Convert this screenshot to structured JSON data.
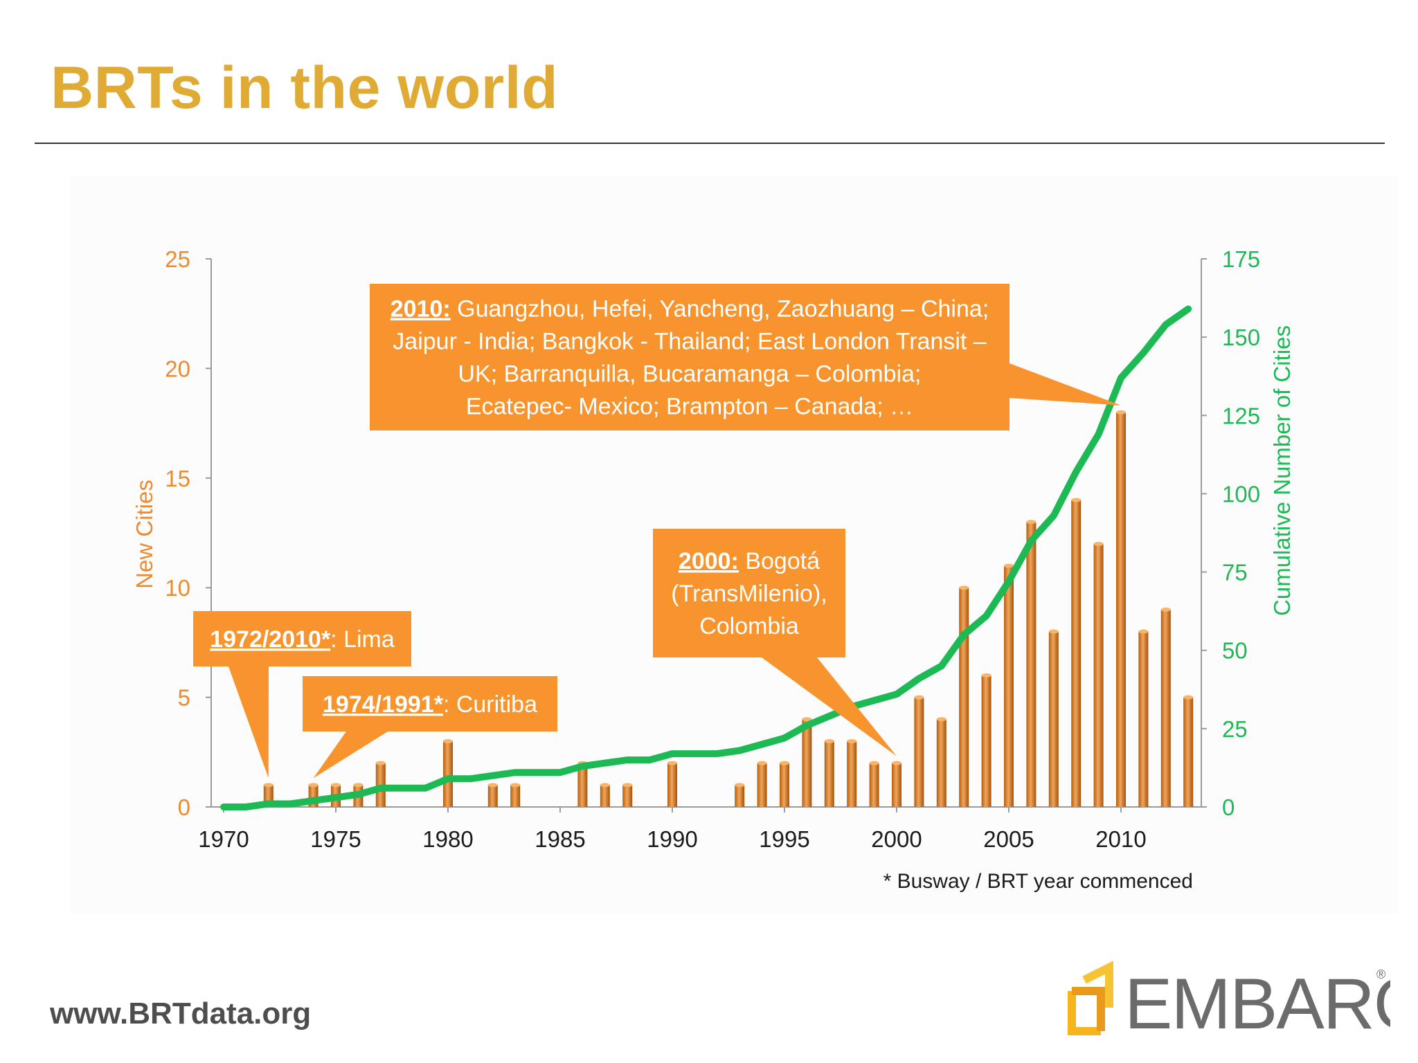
{
  "slide": {
    "title": "BRTs in the world",
    "url": "www.BRTdata.org",
    "logo_text": "EMBARQ",
    "logo_mark": "®"
  },
  "colors": {
    "title": "#DFAB34",
    "bar": "#D9801F",
    "line": "#1DB954",
    "left_axis": "#EE8A2E",
    "right_axis": "#1DB954",
    "callout": "#F7942E"
  },
  "chart_data": {
    "type": "bar",
    "title": "",
    "xlabel": "",
    "ylabel": "New Cities",
    "y2label": "Cumulative Number of Cities",
    "ylim": [
      0,
      25
    ],
    "y2lim": [
      0,
      175
    ],
    "x_ticks": [
      1970,
      1975,
      1980,
      1985,
      1990,
      1995,
      2000,
      2005,
      2010
    ],
    "y_ticks": [
      0,
      5,
      10,
      15,
      20,
      25
    ],
    "y2_ticks": [
      0,
      25,
      50,
      75,
      100,
      125,
      150,
      175
    ],
    "grid": false,
    "legend": "none",
    "footnote": "* Busway / BRT year commenced",
    "series": [
      {
        "name": "New Cities",
        "type": "bar",
        "axis": "left",
        "x": [
          1972,
          1974,
          1975,
          1976,
          1977,
          1980,
          1982,
          1983,
          1986,
          1987,
          1988,
          1990,
          1993,
          1994,
          1995,
          1996,
          1997,
          1998,
          1999,
          2000,
          2001,
          2002,
          2003,
          2004,
          2005,
          2006,
          2007,
          2008,
          2009,
          2010,
          2011,
          2012,
          2013
        ],
        "values": [
          1,
          1,
          1,
          1,
          2,
          3,
          1,
          1,
          2,
          1,
          1,
          2,
          1,
          2,
          2,
          4,
          3,
          3,
          2,
          2,
          5,
          4,
          10,
          6,
          11,
          13,
          8,
          14,
          12,
          18,
          8,
          9,
          5
        ]
      },
      {
        "name": "Cumulative Number of Cities",
        "type": "line",
        "axis": "right",
        "x": [
          1970,
          1971,
          1972,
          1973,
          1974,
          1975,
          1976,
          1977,
          1978,
          1979,
          1980,
          1981,
          1982,
          1983,
          1984,
          1985,
          1986,
          1987,
          1988,
          1989,
          1990,
          1991,
          1992,
          1993,
          1994,
          1995,
          1996,
          1997,
          1998,
          1999,
          2000,
          2001,
          2002,
          2003,
          2004,
          2005,
          2006,
          2007,
          2008,
          2009,
          2010,
          2011,
          2012,
          2013
        ],
        "values": [
          0,
          0,
          1,
          1,
          2,
          3,
          4,
          6,
          6,
          6,
          9,
          9,
          10,
          11,
          11,
          11,
          13,
          14,
          15,
          15,
          17,
          17,
          17,
          18,
          20,
          22,
          26,
          29,
          32,
          34,
          36,
          41,
          45,
          55,
          61,
          72,
          85,
          93,
          107,
          119,
          137,
          145,
          154,
          159
        ]
      }
    ],
    "annotations": [
      {
        "id": "lima",
        "year_label": "1972/2010*",
        "lines": [
          ": Lima"
        ],
        "points_to": 1972
      },
      {
        "id": "curitiba",
        "year_label": "1974/1991*",
        "lines": [
          ": Curitiba"
        ],
        "points_to": 1974
      },
      {
        "id": "bogota",
        "year_label": "2000:",
        "lines": [
          " Bogotá",
          "(TransMilenio),",
          "Colombia"
        ],
        "points_to": 2000
      },
      {
        "id": "china",
        "year_label": "2010:",
        "lines": [
          " Guangzhou, Hefei, Yancheng, Zaozhuang – China;",
          "Jaipur - India;  Bangkok - Thailand; East London Transit –",
          "UK; Barranquilla, Bucaramanga – Colombia;",
          "Ecatepec- Mexico; Brampton – Canada; …"
        ],
        "points_to": 2010
      }
    ]
  }
}
